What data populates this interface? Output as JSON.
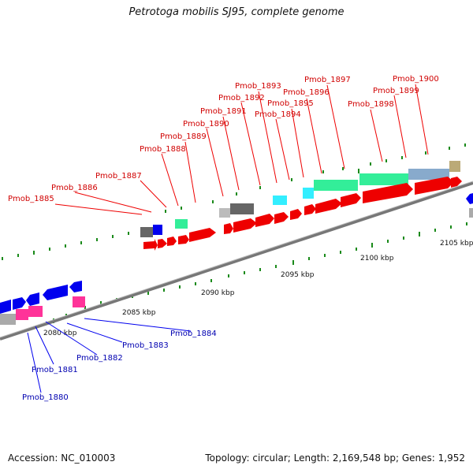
{
  "title": "Petrotoga mobilis SJ95, complete genome",
  "footer": {
    "accession": "Accession: NC_010003",
    "summary": "Topology: circular; Length: 2,169,548 bp; Genes: 1,952"
  },
  "colors": {
    "forward_cds": "#ee0000",
    "reverse_cds": "#0000ee",
    "forward_label": "#d00000",
    "reverse_label": "#0000b0",
    "backbone": "#888888",
    "gc_ticks": "#1a8a1a",
    "rna": "#ff44aa",
    "cog_green": "#33ee99",
    "cog_cyan": "#33eeff",
    "cog_grey": "#777777"
  },
  "scale_labels": [
    "2080 kbp",
    "2085 kbp",
    "2090 kbp",
    "2095 kbp",
    "2100 kbp",
    "2105 kbp"
  ],
  "forward_genes": [
    "Pmob_1885",
    "Pmob_1886",
    "Pmob_1887",
    "Pmob_1888",
    "Pmob_1889",
    "Pmob_1890",
    "Pmob_1891",
    "Pmob_1892",
    "Pmob_1893",
    "Pmob_1894",
    "Pmob_1895",
    "Pmob_1896",
    "Pmob_1897",
    "Pmob_1898",
    "Pmob_1899",
    "Pmob_1900"
  ],
  "reverse_genes": [
    "Pmob_1880",
    "Pmob_1881",
    "Pmob_1882",
    "Pmob_1883",
    "Pmob_1884"
  ]
}
